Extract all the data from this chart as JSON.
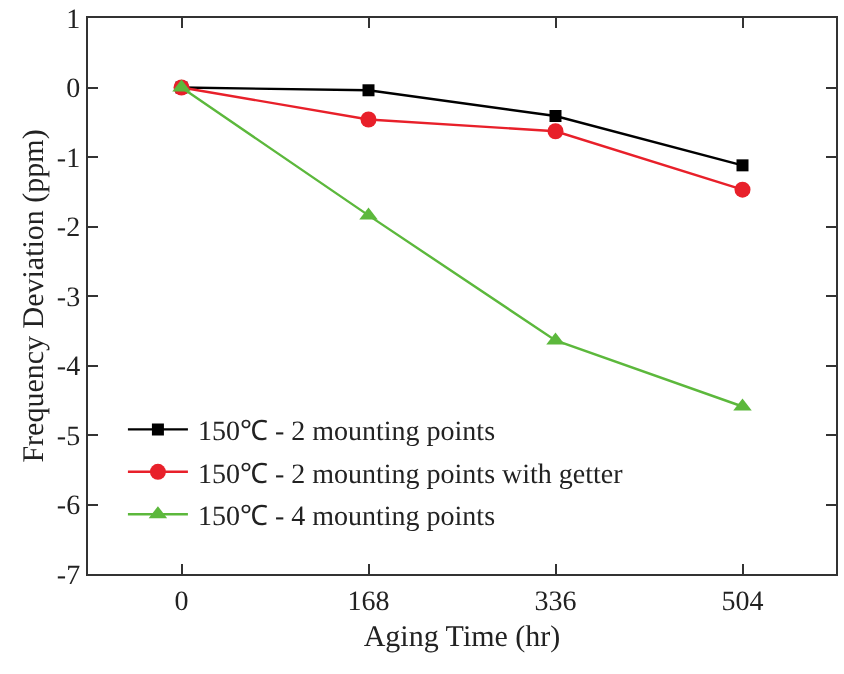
{
  "chart_data": {
    "type": "line",
    "xlabel": "Aging Time (hr)",
    "ylabel": "Frequency Deviation (ppm)",
    "x": [
      0,
      168,
      336,
      504
    ],
    "series": [
      {
        "name": "150℃ - 2 mounting points",
        "color": "#000000",
        "marker": "square",
        "values": [
          0,
          -0.04,
          -0.41,
          -1.12
        ]
      },
      {
        "name": "150℃ - 2 mounting points with getter",
        "color": "#e8202a",
        "marker": "circle",
        "values": [
          0,
          -0.46,
          -0.63,
          -1.47
        ]
      },
      {
        "name": "150℃ - 4 mounting points",
        "color": "#5cb83c",
        "marker": "triangle",
        "values": [
          0,
          -1.84,
          -3.64,
          -4.59
        ]
      }
    ],
    "xlim": [
      -84,
      588
    ],
    "xticks": [
      0,
      168,
      336,
      504
    ],
    "ylim": [
      -7,
      1
    ],
    "yticks": [
      -7,
      -6,
      -5,
      -4,
      -3,
      -2,
      -1,
      0,
      1
    ],
    "legend": "bottom left",
    "line_style": "solid"
  }
}
